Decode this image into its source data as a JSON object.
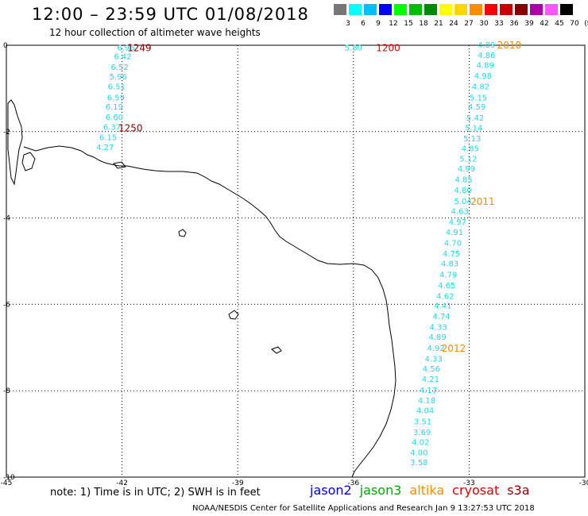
{
  "header": {
    "title": "12:00 – 23:59 UTC 01/08/2018",
    "subtitle": "12 hour collection of altimeter wave heights"
  },
  "color_scale": {
    "unit_label": "(ft)",
    "entries": [
      {
        "label": "3",
        "color": "#777777"
      },
      {
        "label": "6",
        "color": "#00ffff"
      },
      {
        "label": "9",
        "color": "#00bfff"
      },
      {
        "label": "12",
        "color": "#0000ff"
      },
      {
        "label": "15",
        "color": "#00ff00"
      },
      {
        "label": "18",
        "color": "#00bf00"
      },
      {
        "label": "21",
        "color": "#008800"
      },
      {
        "label": "24",
        "color": "#ffff00"
      },
      {
        "label": "27",
        "color": "#ffd700"
      },
      {
        "label": "30",
        "color": "#ff8c00"
      },
      {
        "label": "33",
        "color": "#ff0000"
      },
      {
        "label": "36",
        "color": "#cc0000"
      },
      {
        "label": "39",
        "color": "#880000"
      },
      {
        "label": "42",
        "color": "#aa00aa"
      },
      {
        "label": "45",
        "color": "#ff55ff"
      },
      {
        "label": "70",
        "color": "#000000"
      }
    ]
  },
  "axes": {
    "lon_labels": [
      "-45",
      "-42",
      "-39",
      "-36",
      "-33",
      "-30"
    ],
    "lat_labels": [
      "0",
      "-2",
      "-4",
      "-6",
      "-8",
      "-10"
    ]
  },
  "tracks": [
    {
      "color": "#22d8e0",
      "points": [
        {
          "lon": -41.9,
          "lat": -0.05,
          "v": "6.96"
        },
        {
          "lon": -41.98,
          "lat": -0.25,
          "v": "6.42"
        },
        {
          "lon": -42.06,
          "lat": -0.5,
          "v": "6.52"
        },
        {
          "lon": -42.1,
          "lat": -0.72,
          "v": "5.96"
        },
        {
          "lon": -42.14,
          "lat": -0.95,
          "v": "6.51"
        },
        {
          "lon": -42.16,
          "lat": -1.2,
          "v": "6.59"
        },
        {
          "lon": -42.2,
          "lat": -1.42,
          "v": "6.19"
        },
        {
          "lon": -42.2,
          "lat": -1.65,
          "v": "6.60"
        },
        {
          "lon": -42.26,
          "lat": -1.88,
          "v": "6.37"
        },
        {
          "lon": -42.36,
          "lat": -2.12,
          "v": "6.15"
        },
        {
          "lon": -42.44,
          "lat": -2.35,
          "v": "4.27"
        }
      ]
    },
    {
      "color": "#22d8e0",
      "points": [
        {
          "lon": -36.0,
          "lat": -0.05,
          "v": "5.80"
        }
      ]
    },
    {
      "color": "#22d8e0",
      "points": [
        {
          "lon": -32.55,
          "lat": 0.02,
          "v": "4.89"
        },
        {
          "lon": -32.55,
          "lat": -0.22,
          "v": "4.86"
        },
        {
          "lon": -32.58,
          "lat": -0.45,
          "v": "4.89"
        },
        {
          "lon": -32.64,
          "lat": -0.7,
          "v": "4.98"
        },
        {
          "lon": -32.7,
          "lat": -0.95,
          "v": "4.82"
        },
        {
          "lon": -32.76,
          "lat": -1.2,
          "v": "5.15"
        },
        {
          "lon": -32.8,
          "lat": -1.42,
          "v": "4.59"
        },
        {
          "lon": -32.84,
          "lat": -1.67,
          "v": "5.42"
        },
        {
          "lon": -32.88,
          "lat": -1.9,
          "v": "5.14"
        },
        {
          "lon": -32.92,
          "lat": -2.15,
          "v": "5.13"
        },
        {
          "lon": -32.97,
          "lat": -2.38,
          "v": "4.85"
        },
        {
          "lon": -33.02,
          "lat": -2.62,
          "v": "5.12"
        },
        {
          "lon": -33.07,
          "lat": -2.85,
          "v": "4.99"
        },
        {
          "lon": -33.14,
          "lat": -3.1,
          "v": "4.85"
        },
        {
          "lon": -33.16,
          "lat": -3.35,
          "v": "4.80"
        },
        {
          "lon": -33.16,
          "lat": -3.6,
          "v": "5.04"
        },
        {
          "lon": -33.24,
          "lat": -3.83,
          "v": "4.63"
        },
        {
          "lon": -33.3,
          "lat": -4.08,
          "v": "4.97"
        },
        {
          "lon": -33.38,
          "lat": -4.32,
          "v": "4.91"
        },
        {
          "lon": -33.42,
          "lat": -4.57,
          "v": "4.70"
        },
        {
          "lon": -33.46,
          "lat": -4.82,
          "v": "4.75"
        },
        {
          "lon": -33.5,
          "lat": -5.05,
          "v": "4.83"
        },
        {
          "lon": -33.54,
          "lat": -5.3,
          "v": "4.79"
        },
        {
          "lon": -33.58,
          "lat": -5.55,
          "v": "4.65"
        },
        {
          "lon": -33.62,
          "lat": -5.8,
          "v": "4.62"
        },
        {
          "lon": -33.68,
          "lat": -6.02,
          "v": "4.41"
        },
        {
          "lon": -33.72,
          "lat": -6.27,
          "v": "4.74"
        },
        {
          "lon": -33.8,
          "lat": -6.52,
          "v": "4.33"
        },
        {
          "lon": -33.82,
          "lat": -6.75,
          "v": "4.89"
        },
        {
          "lon": -33.86,
          "lat": -7.0,
          "v": "4.92"
        },
        {
          "lon": -33.92,
          "lat": -7.25,
          "v": "4.33"
        },
        {
          "lon": -33.98,
          "lat": -7.48,
          "v": "4.56"
        },
        {
          "lon": -34.0,
          "lat": -7.72,
          "v": "4.21"
        },
        {
          "lon": -34.06,
          "lat": -7.98,
          "v": "4.17"
        },
        {
          "lon": -34.1,
          "lat": -8.22,
          "v": "4.18"
        },
        {
          "lon": -34.14,
          "lat": -8.45,
          "v": "4.04"
        },
        {
          "lon": -34.2,
          "lat": -8.7,
          "v": "3.51"
        },
        {
          "lon": -34.22,
          "lat": -8.95,
          "v": "3.69"
        },
        {
          "lon": -34.26,
          "lat": -9.18,
          "v": "4.02"
        },
        {
          "lon": -34.3,
          "lat": -9.42,
          "v": "4.00"
        },
        {
          "lon": -34.3,
          "lat": -9.65,
          "v": "3.58"
        }
      ]
    }
  ],
  "time_labels": [
    {
      "text": "1249",
      "lon": -41.55,
      "lat": -0.05,
      "color": "#8b0000"
    },
    {
      "text": "1250",
      "lon": -41.78,
      "lat": -1.9,
      "color": "#8b0000"
    },
    {
      "text": "1200",
      "lon": -35.1,
      "lat": -0.05,
      "color": "#dd0000"
    },
    {
      "text": "2010",
      "lon": -31.96,
      "lat": 0.02,
      "color": "#ee8c00"
    },
    {
      "text": "2011",
      "lon": -32.65,
      "lat": -3.6,
      "color": "#ee8c00"
    },
    {
      "text": "2012",
      "lon": -33.4,
      "lat": -7.0,
      "color": "#ee8c00"
    }
  ],
  "satellites": [
    {
      "name": "jason2",
      "color": "#0000dd"
    },
    {
      "name": "jason3",
      "color": "#00aa00"
    },
    {
      "name": "altika",
      "color": "#ff8c00"
    },
    {
      "name": "cryosat",
      "color": "#dd0000"
    },
    {
      "name": "s3a",
      "color": "#8b0000"
    }
  ],
  "footer": {
    "note": "note:  1) Time is in UTC;  2) SWH is in feet",
    "credit": "NOAA/NESDIS Center for Satellite Applications and Research    Jan  9 13:27:53 UTC 2018"
  }
}
